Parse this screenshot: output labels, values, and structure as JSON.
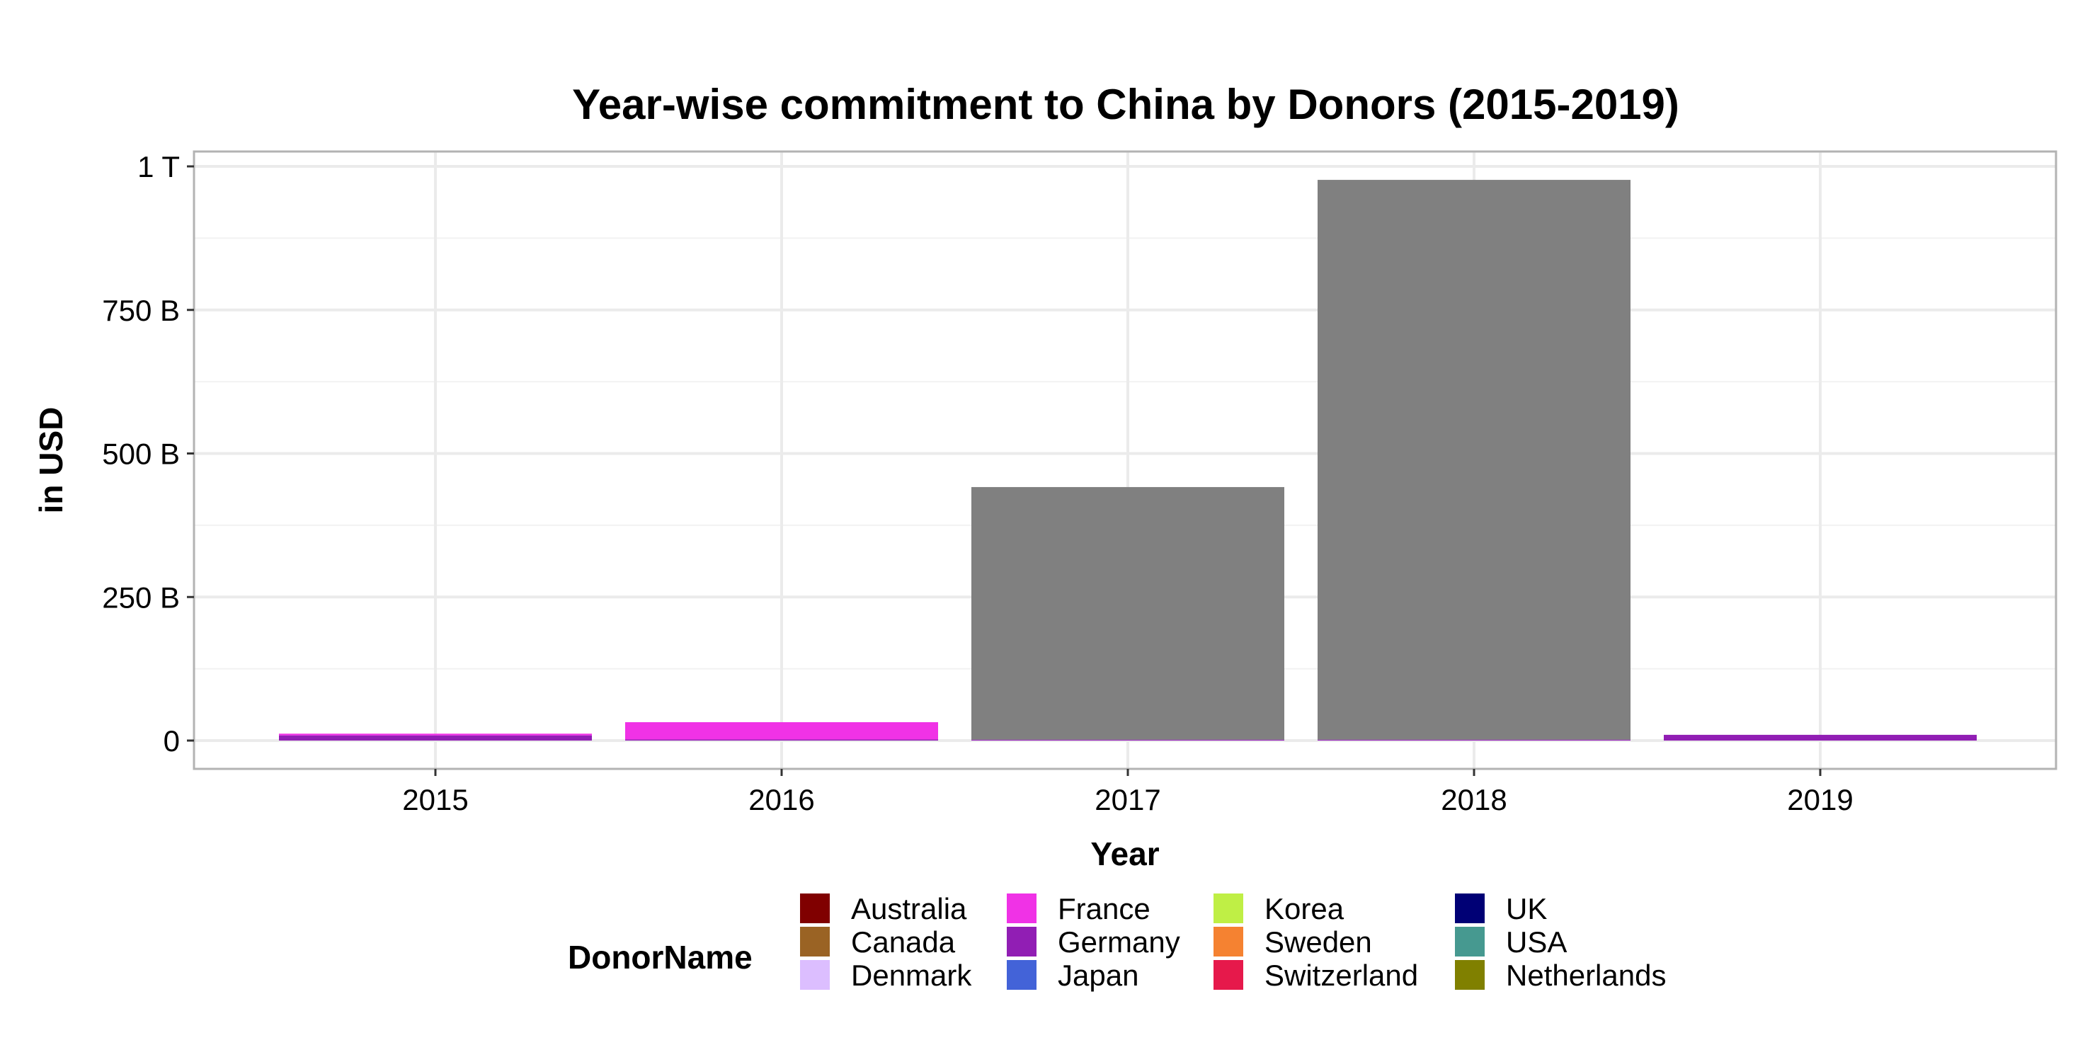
{
  "chart_data": {
    "type": "bar",
    "stacked": true,
    "title": "Year-wise commitment to China by Donors (2015-2019)",
    "xlabel": "Year",
    "ylabel": "in USD",
    "categories": [
      "2015",
      "2016",
      "2017",
      "2018",
      "2019"
    ],
    "ylim": [
      0,
      1000000000000
    ],
    "y_ticks": [
      {
        "value": 0,
        "label": "0"
      },
      {
        "value": 250000000000,
        "label": "250 B"
      },
      {
        "value": 500000000000,
        "label": "500 B"
      },
      {
        "value": 750000000000,
        "label": "750 B"
      },
      {
        "value": 1000000000000,
        "label": "1 T"
      }
    ],
    "grid": true,
    "legend": {
      "title": "DonorName",
      "position": "bottom",
      "entries": [
        {
          "name": "Australia",
          "color": "#800000"
        },
        {
          "name": "Canada",
          "color": "#9A6324"
        },
        {
          "name": "Denmark",
          "color": "#DCBEFF"
        },
        {
          "name": "France",
          "color": "#F032E6"
        },
        {
          "name": "Germany",
          "color": "#911EB4"
        },
        {
          "name": "Japan",
          "color": "#4363D8"
        },
        {
          "name": "Korea",
          "color": "#BFEF45"
        },
        {
          "name": "Sweden",
          "color": "#F58231"
        },
        {
          "name": "Switzerland",
          "color": "#E6194B"
        },
        {
          "name": "UK",
          "color": "#000075"
        },
        {
          "name": "USA",
          "color": "#469990"
        },
        {
          "name": "Netherlands",
          "color": "#808000"
        }
      ]
    },
    "bars": [
      {
        "category": "2015",
        "segments": [
          {
            "donor": "Germany",
            "color": "#911EB4",
            "value": 9000000000
          },
          {
            "donor": "France",
            "color": "#F032E6",
            "value": 3000000000
          }
        ]
      },
      {
        "category": "2016",
        "segments": [
          {
            "donor": "Germany",
            "color": "#911EB4",
            "value": 2000000000
          },
          {
            "donor": "France",
            "color": "#F032E6",
            "value": 30000000000
          }
        ]
      },
      {
        "category": "2017",
        "segments": [
          {
            "donor": "Germany",
            "color": "#911EB4",
            "value": 1500000000
          },
          {
            "donor": "",
            "color": "#808080",
            "value": 440000000000
          }
        ]
      },
      {
        "category": "2018",
        "segments": [
          {
            "donor": "Germany",
            "color": "#911EB4",
            "value": 1500000000
          },
          {
            "donor": "",
            "color": "#808080",
            "value": 975000000000
          }
        ]
      },
      {
        "category": "2019",
        "segments": [
          {
            "donor": "Germany",
            "color": "#911EB4",
            "value": 10000000000
          }
        ]
      }
    ]
  }
}
